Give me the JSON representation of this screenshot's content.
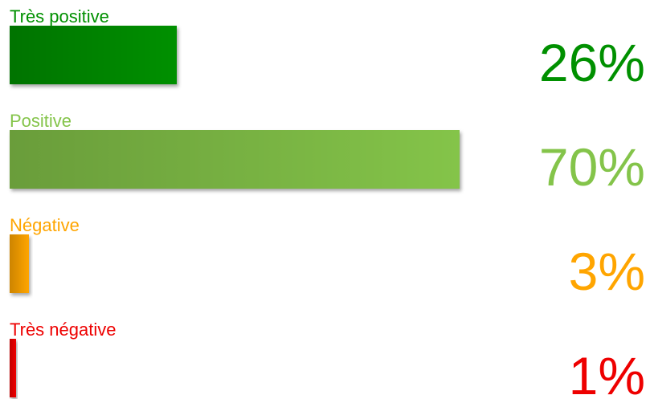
{
  "chart_data": {
    "type": "bar",
    "categories": [
      "Très positive",
      "Positive",
      "Négative",
      "Très négative"
    ],
    "values": [
      26,
      70,
      3,
      1
    ],
    "value_labels": [
      "26%",
      "70%",
      "3%",
      "1%"
    ],
    "colors": [
      "#009000",
      "#84c44a",
      "#ffa500",
      "#ee0000"
    ],
    "xlim": [
      0,
      100
    ]
  }
}
